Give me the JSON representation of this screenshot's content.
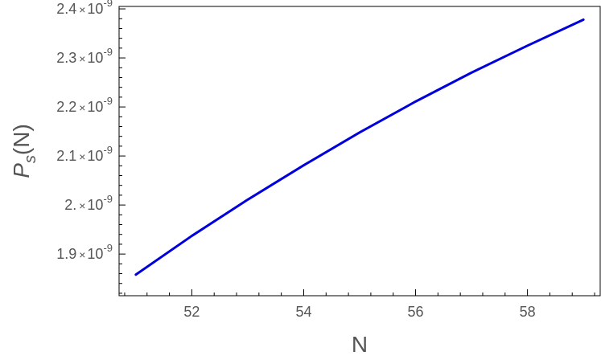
{
  "chart_data": {
    "type": "line",
    "title": "",
    "xlabel": "N",
    "ylabel": {
      "main": "P",
      "sub": "s",
      "suffix": "(N)"
    },
    "xlim": [
      50.7,
      59.3
    ],
    "ylim": [
      1.815,
      2.405
    ],
    "x_ticks": [
      52,
      54,
      56,
      58
    ],
    "x_tick_labels": [
      "52",
      "54",
      "56",
      "58"
    ],
    "y_ticks": [
      1.9,
      2.0,
      2.1,
      2.2,
      2.3,
      2.4
    ],
    "y_tick_labels": [
      {
        "mantissa": "1.9",
        "times": "×",
        "base": "10",
        "exp": "-9"
      },
      {
        "mantissa": "2.",
        "times": "×",
        "base": "10",
        "exp": "-9"
      },
      {
        "mantissa": "2.1",
        "times": "×",
        "base": "10",
        "exp": "-9"
      },
      {
        "mantissa": "2.2",
        "times": "×",
        "base": "10",
        "exp": "-9"
      },
      {
        "mantissa": "2.3",
        "times": "×",
        "base": "10",
        "exp": "-9"
      },
      {
        "mantissa": "2.4",
        "times": "×",
        "base": "10",
        "exp": "-9"
      }
    ],
    "y_unit": "1e-9",
    "grid": false,
    "series": [
      {
        "color": "#0000dd",
        "x": [
          51,
          52,
          53,
          54,
          55,
          56,
          57,
          58,
          59
        ],
        "y": [
          1.858,
          1.937,
          2.011,
          2.081,
          2.148,
          2.211,
          2.27,
          2.325,
          2.378
        ]
      }
    ]
  }
}
